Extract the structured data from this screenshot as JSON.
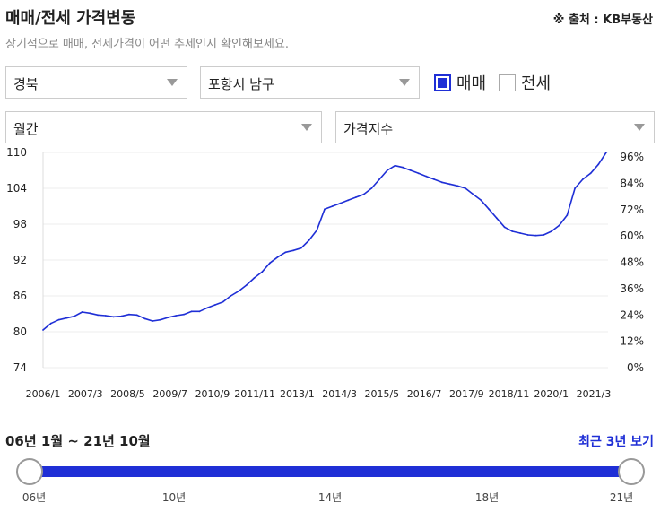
{
  "header": {
    "title": "매매/전세 가격변동",
    "source": "※ 출처 : KB부동산",
    "subtitle": "장기적으로 매매, 전세가격이 어떤 추세인지 확인해보세요."
  },
  "filters": {
    "region": "경북",
    "city": "포항시 남구",
    "period": "월간",
    "index_type": "가격지수",
    "checkbox_sale": "매매",
    "checkbox_jeonse": "전세",
    "sale_checked": true,
    "jeonse_checked": false
  },
  "range": {
    "label": "06년 1월 ~ 21년 10월",
    "recent_link": "최근 3년 보기",
    "ticks": [
      "06년",
      "10년",
      "14년",
      "18년",
      "21년"
    ]
  },
  "colors": {
    "accent": "#1f2fd6",
    "line": "#1f2fd6"
  },
  "chart_data": {
    "type": "line",
    "series": [
      {
        "values": [
          80.3,
          81.4,
          82.0,
          82.3,
          82.6,
          83.3,
          83.1,
          82.8,
          82.7,
          82.5,
          82.6,
          82.9,
          82.8,
          82.2,
          81.8,
          82.0,
          82.4,
          82.7,
          82.9,
          83.4,
          83.4,
          84.0,
          84.5,
          85.0,
          86.0,
          86.8,
          87.8,
          89.0,
          90.0,
          91.5,
          92.5,
          93.3,
          93.6,
          94.0,
          95.3,
          97.0,
          100.5,
          101.0,
          101.5,
          102.0,
          102.5,
          103.0,
          104.0,
          105.5,
          107.0,
          107.8,
          107.5,
          107.0,
          106.5,
          106.0,
          105.5,
          105.0,
          104.7,
          104.4,
          104.0,
          103.0,
          102.0,
          100.5,
          99.0,
          97.5,
          96.8,
          96.5,
          96.2,
          96.1,
          96.2,
          96.8,
          97.8,
          99.5,
          104.0,
          105.5,
          106.5,
          108.0,
          110.0
        ]
      }
    ],
    "x_tick_labels": [
      "2006/1",
      "2007/3",
      "2008/5",
      "2009/7",
      "2010/9",
      "2011/11",
      "2013/1",
      "2014/3",
      "2015/5",
      "2016/7",
      "2017/9",
      "2018/11",
      "2020/1",
      "2021/3"
    ],
    "y_left_ticks": [
      74,
      80,
      86,
      92,
      98,
      104,
      110
    ],
    "y_right_ticks": [
      "0%",
      "12%",
      "24%",
      "36%",
      "48%",
      "60%",
      "72%",
      "84%",
      "96%"
    ],
    "ylim": [
      74,
      110
    ],
    "grid": true,
    "legend": "none"
  }
}
